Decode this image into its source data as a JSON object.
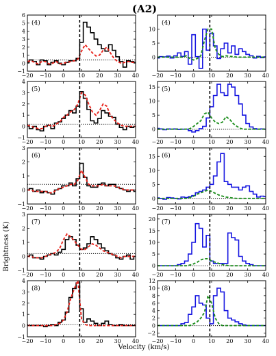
{
  "figure": {
    "title": "(A2)",
    "xlabel": "Velocity (km/s)",
    "ylabel": "Brightness (K)",
    "vline_x": 9,
    "xlim": [
      -20,
      40
    ],
    "xticks": [
      -20,
      -10,
      0,
      10,
      20,
      30,
      40
    ],
    "colors": {
      "black": "#000000",
      "red": "#e8221b",
      "blue": "#1515e0",
      "green": "#1f8f1f"
    }
  },
  "chart_data": [
    {
      "type": "line",
      "panel": "left",
      "label": "(4)",
      "row": 0,
      "ylim": [
        -1,
        6
      ],
      "yticks": [
        -1,
        0,
        1,
        2,
        3,
        4,
        5,
        6
      ],
      "hline": 0.4,
      "x": [
        -20,
        -18,
        -16,
        -14,
        -12,
        -10,
        -8,
        -6,
        -4,
        -2,
        0,
        2,
        4,
        6,
        8,
        10,
        12,
        14,
        16,
        18,
        20,
        22,
        24,
        26,
        28,
        30,
        32,
        34,
        36,
        38,
        40
      ],
      "series": [
        {
          "color": "black",
          "step": true,
          "values": [
            0.1,
            0.4,
            0.2,
            -0.2,
            0.4,
            0.3,
            -0.2,
            0.1,
            0.3,
            0.0,
            -0.2,
            0.1,
            0.3,
            0.3,
            0.6,
            2.6,
            5.1,
            4.5,
            3.8,
            3.0,
            2.3,
            1.8,
            1.5,
            2.3,
            1.6,
            0.8,
            0.2,
            -0.5,
            0.3,
            0.2,
            0.1
          ]
        },
        {
          "color": "red",
          "step": false,
          "values": [
            0.2,
            0.3,
            0.1,
            -0.1,
            0.2,
            0.2,
            -0.1,
            0.0,
            0.2,
            -0.1,
            0.0,
            0.1,
            0.2,
            0.3,
            0.5,
            1.5,
            2.3,
            1.8,
            1.3,
            0.9,
            1.0,
            1.6,
            2.0,
            1.3,
            0.6,
            0.2,
            0.0,
            0.1,
            0.2,
            0.1,
            0.1
          ]
        }
      ]
    },
    {
      "type": "line",
      "panel": "right",
      "label": "(4)",
      "row": 0,
      "ylim": [
        -5,
        15
      ],
      "yticks": [
        0,
        5,
        10
      ],
      "hline": 0,
      "x": [
        -20,
        -18,
        -16,
        -14,
        -12,
        -10,
        -8,
        -6,
        -4,
        -2,
        0,
        2,
        4,
        6,
        8,
        10,
        12,
        14,
        16,
        18,
        20,
        22,
        24,
        26,
        28,
        30,
        32,
        34,
        36,
        38,
        40
      ],
      "series": [
        {
          "color": "blue",
          "step": true,
          "values": [
            -0.3,
            0.2,
            0.1,
            0.4,
            -0.3,
            0.5,
            1.5,
            0.3,
            2.0,
            -2.5,
            8.0,
            0.2,
            -4.0,
            10.0,
            2.5,
            8.5,
            4.0,
            -0.5,
            3.0,
            5.0,
            1.5,
            4.0,
            1.0,
            3.0,
            2.0,
            1.0,
            0.5,
            -0.3,
            0.3,
            -0.2,
            0.1
          ]
        },
        {
          "color": "green",
          "step": false,
          "values": [
            0,
            0,
            0,
            0,
            0,
            0,
            0,
            0,
            0.5,
            -0.5,
            -1.0,
            -0.5,
            0.5,
            6.0,
            10.0,
            10.0,
            3.0,
            1.0,
            0.2,
            0.5,
            0.3,
            0.2,
            0,
            0,
            0,
            0,
            0,
            0,
            0,
            0,
            0
          ]
        }
      ]
    },
    {
      "type": "line",
      "panel": "left",
      "label": "(5)",
      "row": 1,
      "ylim": [
        -1,
        4
      ],
      "yticks": [
        -1,
        0,
        1,
        2,
        3,
        4
      ],
      "hline": 0.2,
      "x": [
        -20,
        -18,
        -16,
        -14,
        -12,
        -10,
        -8,
        -6,
        -4,
        -2,
        0,
        2,
        4,
        6,
        8,
        10,
        12,
        14,
        16,
        18,
        20,
        22,
        24,
        26,
        28,
        30,
        32,
        34,
        36,
        38,
        40
      ],
      "series": [
        {
          "color": "black",
          "step": true,
          "values": [
            0.1,
            -0.2,
            0.0,
            -0.3,
            -0.4,
            0.0,
            0.1,
            -0.2,
            0.3,
            0.4,
            0.7,
            1.0,
            1.4,
            1.2,
            1.8,
            3.1,
            2.5,
            1.5,
            0.5,
            0.3,
            0.7,
            1.4,
            1.2,
            0.9,
            0.8,
            0.2,
            -0.1,
            -0.3,
            0.0,
            -0.1,
            0.0
          ]
        },
        {
          "color": "red",
          "step": false,
          "values": [
            0.1,
            0.0,
            -0.1,
            -0.2,
            -0.2,
            0.0,
            0.1,
            0.0,
            0.2,
            0.4,
            0.8,
            1.0,
            1.3,
            1.5,
            2.0,
            3.0,
            2.8,
            2.0,
            1.3,
            1.0,
            1.4,
            2.0,
            1.8,
            1.0,
            0.6,
            0.3,
            0.1,
            0.0,
            0.0,
            0.0,
            0.0
          ]
        }
      ]
    },
    {
      "type": "line",
      "panel": "right",
      "label": "(5)",
      "row": 1,
      "ylim": [
        -3,
        17
      ],
      "yticks": [
        0,
        5,
        10,
        15
      ],
      "hline": 0,
      "x": [
        -20,
        -18,
        -16,
        -14,
        -12,
        -10,
        -8,
        -6,
        -4,
        -2,
        0,
        2,
        4,
        6,
        8,
        10,
        12,
        14,
        16,
        18,
        20,
        22,
        24,
        26,
        28,
        30,
        32,
        34,
        36,
        38,
        40
      ],
      "series": [
        {
          "color": "blue",
          "step": true,
          "values": [
            0.3,
            0.1,
            -0.2,
            0.1,
            0.0,
            0.1,
            -0.1,
            0.0,
            0.0,
            -0.5,
            -1.0,
            -0.5,
            0.2,
            1.0,
            4.0,
            8.0,
            12.0,
            16.0,
            13.0,
            12.0,
            16.0,
            15.0,
            12.0,
            9.0,
            5.0,
            2.0,
            0.8,
            0.2,
            0.0,
            0.1,
            0.0
          ]
        },
        {
          "color": "green",
          "step": false,
          "values": [
            0,
            0,
            0,
            0,
            0,
            0,
            0,
            0,
            0,
            0.2,
            1.0,
            2.0,
            3.0,
            5.5,
            6.0,
            4.0,
            2.5,
            2.0,
            2.5,
            4.5,
            3.5,
            2.0,
            1.0,
            0.3,
            0,
            0,
            0,
            0,
            0,
            0,
            0
          ]
        }
      ]
    },
    {
      "type": "line",
      "panel": "left",
      "label": "(6)",
      "row": 2,
      "ylim": [
        -1,
        3
      ],
      "yticks": [
        -1,
        0,
        1,
        2,
        3
      ],
      "hline": 0.4,
      "x": [
        -20,
        -18,
        -16,
        -14,
        -12,
        -10,
        -8,
        -6,
        -4,
        -2,
        0,
        2,
        4,
        6,
        8,
        10,
        12,
        14,
        16,
        18,
        20,
        22,
        24,
        26,
        28,
        30,
        32,
        34,
        36,
        38,
        40
      ],
      "series": [
        {
          "color": "black",
          "step": true,
          "values": [
            0.0,
            0.1,
            -0.1,
            0.0,
            -0.2,
            -0.1,
            -0.2,
            -0.3,
            0.0,
            0.1,
            0.3,
            0.3,
            0.5,
            0.3,
            0.8,
            1.9,
            0.9,
            0.3,
            0.2,
            0.2,
            0.4,
            0.5,
            0.3,
            0.4,
            0.4,
            0.2,
            0.1,
            0.0,
            -0.1,
            0.0,
            -0.1
          ]
        },
        {
          "color": "red",
          "step": false,
          "values": [
            0.0,
            0.0,
            -0.1,
            -0.1,
            -0.1,
            -0.1,
            -0.2,
            -0.2,
            0.0,
            0.1,
            0.2,
            0.3,
            0.4,
            0.4,
            0.7,
            1.4,
            0.9,
            0.4,
            0.3,
            0.3,
            0.3,
            0.4,
            0.3,
            0.3,
            0.3,
            0.2,
            0.1,
            0.0,
            0.0,
            0.0,
            0.0
          ]
        }
      ]
    },
    {
      "type": "line",
      "panel": "right",
      "label": "(6)",
      "row": 2,
      "ylim": [
        -2,
        18
      ],
      "yticks": [
        0,
        5,
        10,
        15
      ],
      "hline": 0,
      "x": [
        -20,
        -18,
        -16,
        -14,
        -12,
        -10,
        -8,
        -6,
        -4,
        -2,
        0,
        2,
        4,
        6,
        8,
        10,
        12,
        14,
        16,
        18,
        20,
        22,
        24,
        26,
        28,
        30,
        32,
        34,
        36,
        38,
        40
      ],
      "series": [
        {
          "color": "blue",
          "step": true,
          "values": [
            0.2,
            0.0,
            -0.3,
            0.3,
            0.2,
            0.0,
            -0.2,
            0.5,
            0.3,
            0.6,
            1.0,
            2.0,
            2.5,
            3.0,
            4.0,
            5.0,
            8.0,
            13.0,
            16.0,
            6.0,
            5.0,
            4.0,
            4.0,
            3.0,
            4.0,
            4.5,
            2.5,
            1.5,
            0.5,
            0.8,
            0.6
          ]
        },
        {
          "color": "green",
          "step": false,
          "values": [
            0,
            0,
            0,
            0,
            0,
            0,
            0,
            0,
            0,
            0.3,
            0.8,
            1.5,
            2.0,
            2.5,
            3.0,
            2.5,
            1.8,
            1.2,
            0.8,
            0.5,
            0.3,
            0.1,
            0,
            0,
            0,
            0,
            0,
            0,
            0,
            0,
            0
          ]
        }
      ]
    },
    {
      "type": "line",
      "panel": "left",
      "label": "(7)",
      "row": 3,
      "ylim": [
        -1,
        3
      ],
      "yticks": [
        -1,
        0,
        1,
        2,
        3
      ],
      "hline": 0.2,
      "x": [
        -20,
        -18,
        -16,
        -14,
        -12,
        -10,
        -8,
        -6,
        -4,
        -2,
        0,
        2,
        4,
        6,
        8,
        10,
        12,
        14,
        16,
        18,
        20,
        22,
        24,
        26,
        28,
        30,
        32,
        34,
        36,
        38,
        40
      ],
      "series": [
        {
          "color": "black",
          "step": true,
          "values": [
            0.0,
            0.1,
            -0.1,
            -0.1,
            -0.2,
            0.0,
            0.1,
            0.2,
            0.1,
            0.3,
            0.5,
            1.2,
            1.4,
            1.2,
            0.8,
            0.5,
            0.6,
            0.9,
            1.4,
            1.2,
            0.9,
            0.6,
            0.4,
            0.2,
            0.1,
            -0.1,
            -0.2,
            0.0,
            0.1,
            -0.2,
            0.0
          ]
        },
        {
          "color": "red",
          "step": false,
          "values": [
            0.0,
            0.0,
            -0.1,
            -0.1,
            -0.1,
            0.0,
            0.1,
            0.2,
            0.3,
            0.6,
            1.2,
            1.6,
            1.4,
            1.1,
            0.8,
            0.5,
            0.5,
            0.7,
            0.9,
            0.8,
            0.6,
            0.4,
            0.3,
            0.2,
            0.1,
            0.0,
            -0.1,
            0.0,
            0.0,
            0.0,
            0.0
          ]
        }
      ]
    },
    {
      "type": "line",
      "panel": "right",
      "label": "(7)",
      "row": 3,
      "ylim": [
        -2,
        22
      ],
      "yticks": [
        0,
        5,
        10,
        15,
        20
      ],
      "hline": 0,
      "x": [
        -20,
        -18,
        -16,
        -14,
        -12,
        -10,
        -8,
        -6,
        -4,
        -2,
        0,
        2,
        4,
        6,
        8,
        10,
        12,
        14,
        16,
        18,
        20,
        22,
        24,
        26,
        28,
        30,
        32,
        34,
        36,
        38,
        40
      ],
      "series": [
        {
          "color": "blue",
          "step": true,
          "values": [
            0.0,
            0.0,
            0.0,
            0.0,
            0.0,
            0.0,
            0.5,
            1.0,
            2.0,
            5.0,
            10.0,
            18.0,
            16.0,
            8.0,
            13.0,
            2.0,
            1.0,
            1.0,
            1.0,
            1.0,
            14.0,
            12.0,
            11.0,
            4.0,
            2.0,
            1.0,
            0.5,
            0.0,
            0.0,
            0.0,
            0.0
          ]
        },
        {
          "color": "green",
          "step": false,
          "values": [
            0,
            0,
            0,
            0,
            0,
            0,
            0,
            0,
            0,
            0.3,
            0.8,
            1.5,
            2.5,
            3.0,
            3.0,
            2.0,
            1.5,
            1.0,
            0.5,
            0.2,
            0,
            0,
            0,
            0,
            0,
            0,
            0,
            0,
            0,
            0,
            0
          ]
        }
      ]
    },
    {
      "type": "line",
      "panel": "left",
      "label": "(8)",
      "row": 4,
      "ylim": [
        -1,
        4
      ],
      "yticks": [
        -1,
        0,
        1,
        2,
        3,
        4
      ],
      "hline": 0.1,
      "x": [
        -20,
        -18,
        -16,
        -14,
        -12,
        -10,
        -8,
        -6,
        -4,
        -2,
        0,
        2,
        4,
        6,
        8,
        10,
        12,
        14,
        16,
        18,
        20,
        22,
        24,
        26,
        28,
        30,
        32,
        34,
        36,
        38,
        40
      ],
      "series": [
        {
          "color": "black",
          "step": true,
          "values": [
            0.0,
            0.0,
            0.0,
            0.0,
            0.0,
            -0.1,
            0.0,
            0.1,
            0.0,
            0.3,
            0.5,
            1.2,
            2.5,
            3.3,
            3.8,
            1.5,
            0.3,
            0.6,
            0.4,
            0.2,
            0.0,
            0.2,
            0.4,
            0.1,
            0.0,
            0.0,
            0.1,
            0.0,
            0.0,
            0.0,
            0.0
          ]
        },
        {
          "color": "red",
          "step": false,
          "values": [
            0.0,
            0.0,
            0.0,
            0.0,
            0.0,
            0.0,
            0.0,
            0.0,
            0.1,
            0.2,
            0.5,
            1.2,
            2.4,
            3.3,
            4.0,
            0.6,
            0.1,
            0.0,
            0.0,
            0.0,
            0.0,
            0.0,
            0.0,
            0.0,
            0.0,
            0.0,
            0.0,
            0.0,
            0.0,
            0.0,
            0.0
          ]
        }
      ]
    },
    {
      "type": "line",
      "panel": "right",
      "label": "(8)",
      "row": 4,
      "ylim": [
        -3,
        12
      ],
      "yticks": [
        -2,
        0,
        2,
        4,
        6,
        8,
        10,
        12
      ],
      "hline": 0,
      "x": [
        -20,
        -18,
        -16,
        -14,
        -12,
        -10,
        -8,
        -6,
        -4,
        -2,
        0,
        2,
        4,
        6,
        8,
        10,
        12,
        14,
        16,
        18,
        20,
        22,
        24,
        26,
        28,
        30,
        32,
        34,
        36,
        38,
        40
      ],
      "series": [
        {
          "color": "blue",
          "step": true,
          "values": [
            0.0,
            0.0,
            0.0,
            0.0,
            0.0,
            0.0,
            0.0,
            0.5,
            0.8,
            3.0,
            5.0,
            8.0,
            6.0,
            5.5,
            2.0,
            0.5,
            8.0,
            10.0,
            9.0,
            4.0,
            2.0,
            1.5,
            1.0,
            0.5,
            0.2,
            0.0,
            0.0,
            0.0,
            0.0,
            0.0,
            0.0
          ]
        },
        {
          "color": "green",
          "step": false,
          "values": [
            0,
            0,
            0,
            0,
            0,
            0,
            0,
            0,
            0,
            0,
            0.5,
            1.0,
            2.0,
            3.5,
            8.0,
            6.0,
            2.0,
            0.5,
            0,
            0,
            0,
            0,
            0,
            0,
            0,
            0,
            0,
            0,
            0,
            0,
            0
          ]
        }
      ]
    }
  ]
}
